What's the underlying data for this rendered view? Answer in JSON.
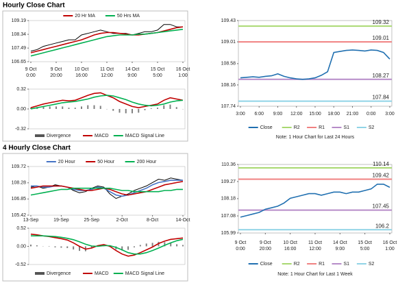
{
  "chart_data": [
    {
      "type": "line",
      "title": "Hourly Close Chart",
      "legend": "top",
      "categories": [
        [
          "9 Oct",
          "0:00"
        ],
        null,
        null,
        null,
        [
          "9 Oct",
          "20:00"
        ],
        null,
        null,
        null,
        [
          "10 Oct",
          "16:00"
        ],
        null,
        null,
        null,
        [
          "11 Oct",
          "12:00"
        ],
        null,
        null,
        null,
        [
          "14 Oct",
          "9:00"
        ],
        null,
        null,
        null,
        [
          "15 Oct",
          "5:00"
        ],
        null,
        null,
        null,
        [
          "16 Oct",
          "1:00"
        ]
      ],
      "ylim": [
        106.65,
        109.19
      ],
      "yticks": [
        106.65,
        107.49,
        108.34,
        109.19
      ],
      "series": [
        {
          "color": "#000000",
          "values": [
            107.3,
            107.4,
            107.6,
            107.7,
            107.8,
            107.9,
            108.0,
            108.0,
            108.3,
            108.4,
            108.5,
            108.6,
            108.5,
            108.4,
            108.4,
            108.4,
            108.3,
            108.4,
            108.5,
            108.5,
            108.6,
            108.95,
            108.95,
            108.8,
            108.8
          ]
        },
        {
          "name": "20 Hr MA",
          "color": "#c00000",
          "values": [
            107.2,
            107.3,
            107.4,
            107.5,
            107.6,
            107.7,
            107.8,
            107.9,
            108.0,
            108.15,
            108.3,
            108.4,
            108.45,
            108.45,
            108.4,
            108.35,
            108.3,
            108.3,
            108.35,
            108.4,
            108.45,
            108.55,
            108.65,
            108.75,
            108.8
          ]
        },
        {
          "name": "50 Hrs MA",
          "color": "#00b050",
          "values": [
            107.0,
            107.1,
            107.2,
            107.3,
            107.4,
            107.5,
            107.6,
            107.7,
            107.8,
            107.9,
            108.0,
            108.1,
            108.2,
            108.25,
            108.3,
            108.3,
            108.3,
            108.35,
            108.35,
            108.4,
            108.45,
            108.5,
            108.55,
            108.6,
            108.65
          ]
        }
      ]
    },
    {
      "type": "macd",
      "legend": "bottom",
      "ylim": [
        -0.32,
        0.32
      ],
      "yticks": [
        -0.32,
        {
          "value": 0,
          "label": "0.00"
        },
        0.32
      ],
      "series": [
        {
          "name": "Divergence",
          "color": "#808080",
          "type": "bar",
          "values": [
            0.02,
            0.03,
            0.04,
            0.04,
            0.04,
            0.04,
            0.02,
            0.02,
            0.04,
            0.06,
            0.06,
            0.05,
            0,
            -0.03,
            -0.06,
            -0.07,
            -0.07,
            -0.06,
            -0.02,
            0.01,
            0.02,
            0.06,
            0.07,
            0.03,
            0
          ]
        },
        {
          "name": "MACD",
          "color": "#c00000",
          "values": [
            0.02,
            0.05,
            0.08,
            0.1,
            0.12,
            0.14,
            0.13,
            0.14,
            0.18,
            0.22,
            0.25,
            0.26,
            0.22,
            0.18,
            0.12,
            0.08,
            0.04,
            0.02,
            0.04,
            0.06,
            0.08,
            0.14,
            0.18,
            0.16,
            0.14
          ]
        },
        {
          "name": "MACD Signal Line",
          "color": "#00b050",
          "values": [
            0.0,
            0.02,
            0.04,
            0.06,
            0.08,
            0.1,
            0.11,
            0.12,
            0.14,
            0.16,
            0.19,
            0.21,
            0.22,
            0.21,
            0.18,
            0.15,
            0.11,
            0.08,
            0.06,
            0.05,
            0.06,
            0.08,
            0.11,
            0.13,
            0.14
          ]
        }
      ]
    },
    {
      "type": "line",
      "legend": "bottom",
      "note": "Note: 1 Hour Chart for Last 24 Hours",
      "categories": [
        "3:00",
        null,
        null,
        "6:00",
        null,
        null,
        "9:00",
        null,
        null,
        "12:00",
        null,
        null,
        "15:00",
        null,
        null,
        "18:00",
        null,
        null,
        "21:00",
        null,
        null,
        "0:00",
        null,
        null,
        "3:00"
      ],
      "ylim": [
        107.74,
        109.43
      ],
      "yticks": [
        107.74,
        108.16,
        108.58,
        109.01,
        109.43
      ],
      "series": [
        {
          "name": "Close",
          "color": "#1f6fb0",
          "values": [
            108.3,
            108.31,
            108.32,
            108.31,
            108.33,
            108.34,
            108.38,
            108.33,
            108.3,
            108.28,
            108.27,
            108.28,
            108.3,
            108.35,
            108.42,
            108.8,
            108.82,
            108.84,
            108.85,
            108.84,
            108.83,
            108.85,
            108.84,
            108.8,
            108.67
          ]
        }
      ],
      "levels": [
        {
          "name": "R2",
          "color": "#a8d870",
          "value": 109.32
        },
        {
          "name": "R1",
          "color": "#f08080",
          "value": 109.01
        },
        {
          "name": "S1",
          "color": "#b68bc8",
          "value": 108.27
        },
        {
          "name": "S2",
          "color": "#8fd3e6",
          "value": 107.84
        }
      ]
    },
    {
      "type": "line",
      "title": "4 Hourly Close Chart",
      "legend": "top",
      "categories": [
        "13-Sep",
        null,
        null,
        null,
        null,
        "19-Sep",
        null,
        null,
        null,
        null,
        "25-Sep",
        null,
        null,
        null,
        null,
        "2-Oct",
        null,
        null,
        null,
        null,
        "8-Oct",
        null,
        null,
        null,
        null,
        "14-Oct"
      ],
      "ylim": [
        105.42,
        109.72
      ],
      "yticks": [
        105.42,
        106.85,
        108.28,
        109.72
      ],
      "series": [
        {
          "color": "#000000",
          "values": [
            107.9,
            108.0,
            107.8,
            107.9,
            108.1,
            108.0,
            107.9,
            107.6,
            107.4,
            107.5,
            107.8,
            108.0,
            107.9,
            107.3,
            106.9,
            107.1,
            107.3,
            107.6,
            107.8,
            108.0,
            108.3,
            108.6,
            108.5,
            108.7,
            108.6,
            108.5
          ]
        },
        {
          "name": "20 Hour",
          "color": "#4472c4",
          "values": [
            108.0,
            108.0,
            107.9,
            107.9,
            108.0,
            108.0,
            107.9,
            107.7,
            107.6,
            107.6,
            107.7,
            107.9,
            107.8,
            107.5,
            107.2,
            107.1,
            107.2,
            107.4,
            107.6,
            107.8,
            108.1,
            108.3,
            108.4,
            108.5,
            108.5,
            108.5
          ]
        },
        {
          "name": "50 Hour",
          "color": "#c00000",
          "values": [
            107.8,
            107.9,
            108.0,
            108.0,
            108.0,
            108.0,
            107.9,
            107.8,
            107.7,
            107.6,
            107.6,
            107.7,
            107.8,
            107.7,
            107.5,
            107.3,
            107.2,
            107.3,
            107.4,
            107.5,
            107.7,
            107.9,
            108.1,
            108.2,
            108.3,
            108.4
          ]
        },
        {
          "name": "200 Hour",
          "color": "#00b050",
          "values": [
            107.2,
            107.3,
            107.4,
            107.5,
            107.6,
            107.7,
            107.7,
            107.8,
            107.8,
            107.8,
            107.8,
            107.8,
            107.8,
            107.8,
            107.7,
            107.6,
            107.6,
            107.5,
            107.5,
            107.5,
            107.5,
            107.5,
            107.6,
            107.6,
            107.7,
            107.7
          ]
        }
      ]
    },
    {
      "type": "macd",
      "legend": "bottom",
      "ylim": [
        -0.52,
        0.52
      ],
      "yticks": [
        -0.52,
        {
          "value": 0,
          "label": "0.00"
        },
        0.52
      ],
      "series": [
        {
          "name": "Divergence",
          "color": "#808080",
          "type": "bar",
          "values": [
            0.05,
            0.03,
            0,
            -0.01,
            -0.03,
            -0.04,
            -0.05,
            -0.09,
            -0.13,
            -0.14,
            -0.06,
            0.02,
            0.03,
            -0.02,
            -0.09,
            -0.12,
            -0.1,
            -0.03,
            0.04,
            0.08,
            0.1,
            0.13,
            0.12,
            0.1,
            0.06,
            0.04
          ]
        },
        {
          "name": "MACD",
          "color": "#c00000",
          "values": [
            0.35,
            0.33,
            0.3,
            0.28,
            0.25,
            0.22,
            0.18,
            0.1,
            0.0,
            -0.08,
            -0.05,
            0.02,
            0.05,
            0.0,
            -0.12,
            -0.22,
            -0.28,
            -0.25,
            -0.18,
            -0.1,
            -0.02,
            0.08,
            0.15,
            0.2,
            0.22,
            0.24
          ]
        },
        {
          "name": "MACD Signal Line",
          "color": "#00b050",
          "values": [
            0.3,
            0.3,
            0.3,
            0.29,
            0.28,
            0.26,
            0.23,
            0.19,
            0.13,
            0.06,
            0.01,
            0.0,
            0.02,
            0.02,
            -0.03,
            -0.1,
            -0.18,
            -0.22,
            -0.22,
            -0.18,
            -0.12,
            -0.05,
            0.03,
            0.1,
            0.16,
            0.2
          ]
        }
      ]
    },
    {
      "type": "line",
      "legend": "bottom",
      "note": "Note: 1 Hour Chart for Last 1 Week",
      "categories": [
        [
          "9 Oct",
          "0:00"
        ],
        null,
        null,
        null,
        [
          "9 Oct",
          "20:00"
        ],
        null,
        null,
        null,
        [
          "10 Oct",
          "16:00"
        ],
        null,
        null,
        null,
        [
          "11 Oct",
          "12:00"
        ],
        null,
        null,
        null,
        [
          "14 Oct",
          "9:00"
        ],
        null,
        null,
        null,
        [
          "15 Oct",
          "5:00"
        ],
        null,
        null,
        null,
        [
          "16 Oct",
          "1:00"
        ]
      ],
      "ylim": [
        105.99,
        110.36
      ],
      "yticks": [
        105.99,
        107.08,
        108.18,
        109.27,
        110.36
      ],
      "series": [
        {
          "name": "Close",
          "color": "#1f6fb0",
          "values": [
            107.0,
            107.1,
            107.2,
            107.3,
            107.5,
            107.6,
            107.7,
            107.9,
            108.2,
            108.3,
            108.4,
            108.5,
            108.5,
            108.4,
            108.5,
            108.6,
            108.6,
            108.5,
            108.6,
            108.6,
            108.7,
            108.8,
            109.1,
            109.1,
            108.9
          ]
        }
      ],
      "levels": [
        {
          "name": "R2",
          "color": "#a8d870",
          "value": 110.14
        },
        {
          "name": "R1",
          "color": "#f08080",
          "value": 109.42
        },
        {
          "name": "S1",
          "color": "#b68bc8",
          "value": 107.45
        },
        {
          "name": "S2",
          "color": "#8fd3e6",
          "value": 106.2
        }
      ]
    }
  ]
}
